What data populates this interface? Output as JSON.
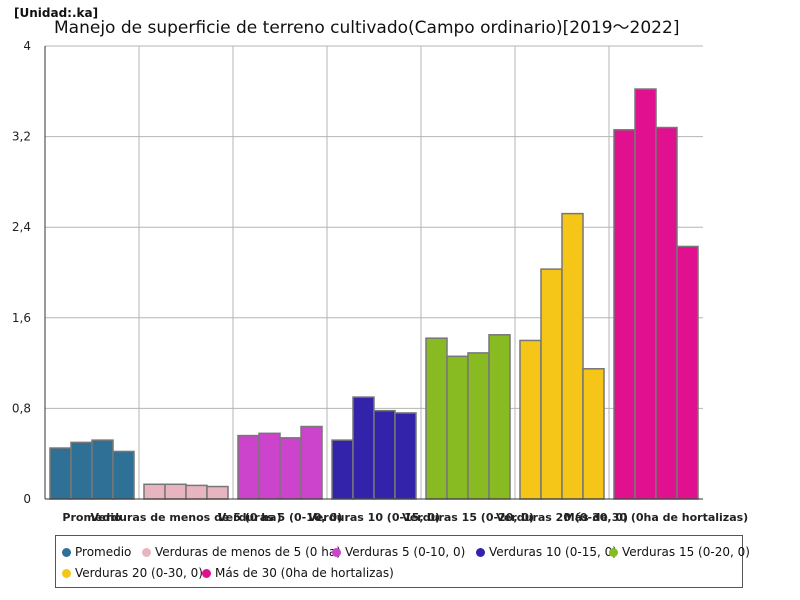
{
  "chart_data": {
    "type": "bar",
    "title": "Manejo de superficie de terreno cultivado(Campo ordinario)[2019～2022]",
    "unit": "[Unidad:.ka]",
    "ylim": [
      0,
      4
    ],
    "yticks": [
      "0",
      "0,8",
      "1,6",
      "2,4",
      "3,2",
      "4"
    ],
    "ytick_values": [
      0,
      0.8,
      1.6,
      2.4,
      3.2,
      4
    ],
    "grid": true,
    "legend_position": "bottom",
    "categories": [
      "Promedio",
      "Verduras de menos de 5 (0 ha)",
      "Verduras 5 (0-10, 0)",
      "Verduras 10 (0-15, 0)",
      "Verduras 15 (0-20, 0)",
      "Verduras 20 (0-30, 0)",
      "Más de 30 (0ha de hortalizas)"
    ],
    "colors": [
      "#2e7096",
      "#e8b4c0",
      "#cc44cc",
      "#3322aa",
      "#88bb22",
      "#f5c518",
      "#e0108f"
    ],
    "values": [
      [
        0.45,
        0.5,
        0.52,
        0.42
      ],
      [
        0.13,
        0.13,
        0.12,
        0.11
      ],
      [
        0.56,
        0.58,
        0.54,
        0.64
      ],
      [
        0.52,
        0.9,
        0.78,
        0.76
      ],
      [
        1.42,
        1.26,
        1.29,
        1.45
      ],
      [
        1.4,
        2.03,
        2.52,
        1.15
      ],
      [
        3.26,
        3.62,
        3.28,
        2.23
      ]
    ]
  }
}
